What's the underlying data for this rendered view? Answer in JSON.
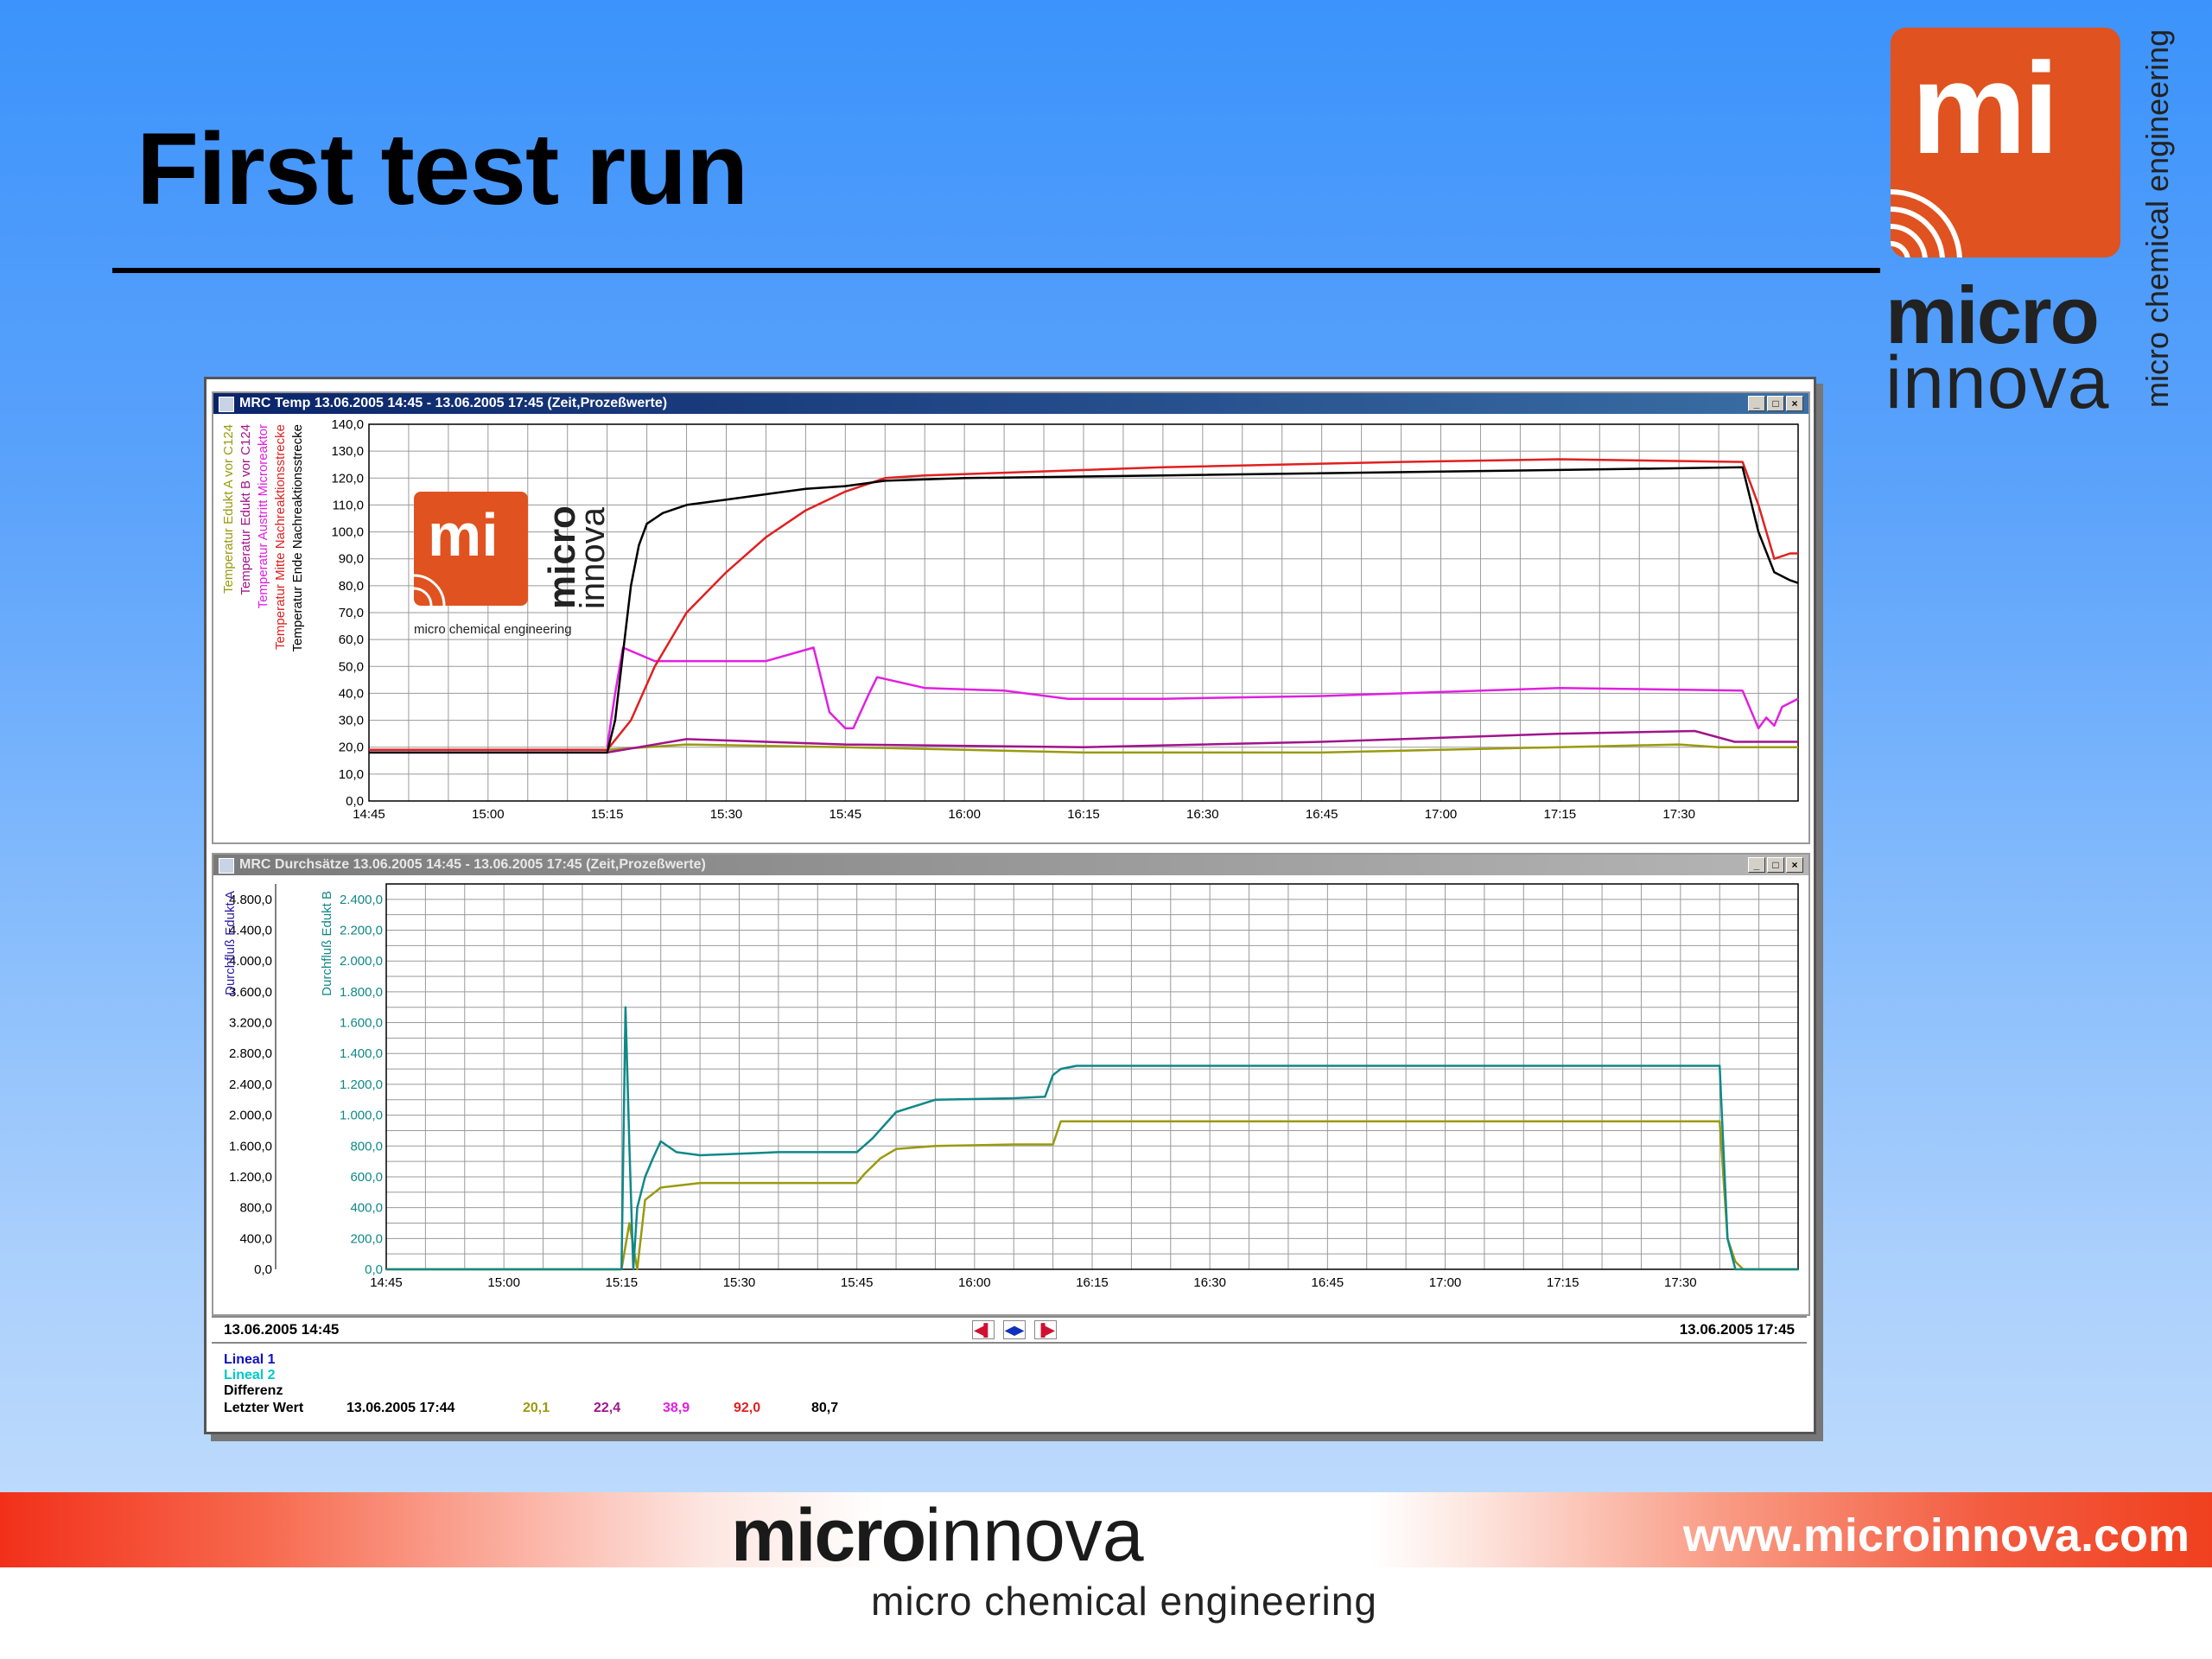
{
  "slide": {
    "title": "First test run"
  },
  "logo": {
    "mark": "mi",
    "line1": "micro",
    "line2": "innova",
    "tagline": "micro chemical engineering"
  },
  "footer": {
    "logo_bold": "micro",
    "logo_light": "innova",
    "url": "www.microinnova.com",
    "tagline": "micro chemical engineering"
  },
  "window": {
    "status_start": "13.06.2005 14:45",
    "status_end": "13.06.2005 17:45",
    "info_labels": [
      "Lineal 1",
      "Lineal 2",
      "Differenz"
    ],
    "last_value_label": "Letzter Wert",
    "last_value_time": "13.06.2005 17:44",
    "last_values": [
      "20,1",
      "22,4",
      "38,9",
      "92,0",
      "80,7"
    ],
    "last_value_colors": [
      "#9a9a10",
      "#a0148c",
      "#e020e0",
      "#e02020",
      "#000000"
    ],
    "info_colors": [
      "#1010c0",
      "#00c8c8",
      "#000000"
    ]
  },
  "colors": {
    "accent": "#e0521f",
    "titlebar": "#0a246a"
  },
  "chart_data": [
    {
      "type": "line",
      "title": "MRC Temp  13.06.2005 14:45 - 13.06.2005 17:45  (Zeit,Prozeßwerte)",
      "xlabel": "",
      "x_ticks": [
        "14:45",
        "15:00",
        "15:15",
        "15:30",
        "15:45",
        "16:00",
        "16:15",
        "16:30",
        "16:45",
        "17:00",
        "17:15",
        "17:30"
      ],
      "xlim": [
        0,
        180
      ],
      "ylim": [
        0,
        140
      ],
      "y_ticks": [
        "0,0",
        "10,0",
        "20,0",
        "30,0",
        "40,0",
        "50,0",
        "60,0",
        "70,0",
        "80,0",
        "90,0",
        "100,0",
        "110,0",
        "120,0",
        "130,0",
        "140,0"
      ],
      "grid": true,
      "inset_logo": {
        "mark": "mi",
        "line1": "micro",
        "line2": "innova",
        "tagline": "micro chemical engineering"
      },
      "series": [
        {
          "name": "Temperatur Edukt A vor C124",
          "color": "#9a9a10",
          "x": [
            0,
            30,
            40,
            60,
            90,
            120,
            150,
            165,
            170,
            180
          ],
          "y": [
            19,
            19,
            21,
            20,
            18,
            18,
            20,
            21,
            20,
            20
          ]
        },
        {
          "name": "Temperatur Edukt B vor C124",
          "color": "#a0148c",
          "x": [
            0,
            30,
            40,
            50,
            60,
            90,
            120,
            150,
            167,
            172,
            180
          ],
          "y": [
            18,
            18,
            23,
            22,
            21,
            20,
            22,
            25,
            26,
            22,
            22
          ]
        },
        {
          "name": "Temperatur Austritt Microreaktor",
          "color": "#e020e0",
          "x": [
            30,
            31,
            32,
            36,
            50,
            56,
            58,
            60,
            61,
            63,
            64,
            70,
            80,
            88,
            100,
            120,
            150,
            173,
            175,
            176,
            177,
            178,
            180
          ],
          "y": [
            20,
            40,
            57,
            52,
            52,
            57,
            33,
            27,
            27,
            40,
            46,
            42,
            41,
            38,
            38,
            39,
            42,
            41,
            27,
            31,
            28,
            35,
            38
          ]
        },
        {
          "name": "Temperatur Mitte Nachreaktionsstrecke",
          "color": "#e02020",
          "x": [
            0,
            30,
            33,
            36,
            40,
            45,
            50,
            55,
            60,
            65,
            70,
            80,
            100,
            130,
            150,
            173,
            175,
            177,
            179,
            180
          ],
          "y": [
            19,
            19,
            30,
            50,
            70,
            85,
            98,
            108,
            115,
            120,
            121,
            122,
            124,
            126,
            127,
            126,
            110,
            90,
            92,
            92
          ]
        },
        {
          "name": "Temperatur Ende Nachreaktionsstrecke",
          "color": "#000000",
          "x": [
            0,
            30,
            31,
            32,
            33,
            34,
            35,
            37,
            40,
            45,
            50,
            55,
            60,
            65,
            75,
            100,
            150,
            173,
            175,
            177,
            179,
            180
          ],
          "y": [
            18,
            18,
            30,
            55,
            80,
            95,
            103,
            107,
            110,
            112,
            114,
            116,
            117,
            119,
            120,
            121,
            123,
            124,
            100,
            85,
            82,
            81
          ]
        }
      ]
    },
    {
      "type": "line",
      "title": "MRC Durchsätze  13.06.2005 14:45 - 13.06.2005 17:45  (Zeit,Prozeßwerte)",
      "x_ticks": [
        "14:45",
        "15:00",
        "15:15",
        "15:30",
        "15:45",
        "16:00",
        "16:15",
        "16:30",
        "16:45",
        "17:00",
        "17:15",
        "17:30"
      ],
      "xlim": [
        0,
        180
      ],
      "ylim_left": [
        0,
        5000
      ],
      "ylim_right": [
        0,
        2500
      ],
      "y_ticks_left": [
        "0,0",
        "400,0",
        "800,0",
        "1.200,0",
        "1.600,0",
        "2.000,0",
        "2.400,0",
        "2.800,0",
        "3.200,0",
        "3.600,0",
        "4.000,0",
        "4.400,0",
        "4.800,0"
      ],
      "y_ticks_right": [
        "0,0",
        "200,0",
        "400,0",
        "600,0",
        "800,0",
        "1.000,0",
        "1.200,0",
        "1.400,0",
        "1.600,0",
        "1.800,0",
        "2.000,0",
        "2.200,0",
        "2.400,0"
      ],
      "ylabel_left": "Durchfluß Edukt A",
      "ylabel_right": "Durchfluß Edukt B",
      "grid": true,
      "series": [
        {
          "name": "Durchfluß Edukt A",
          "color": "#9a9a10",
          "axis": "right",
          "x": [
            0,
            30,
            31,
            32,
            33,
            35,
            40,
            50,
            60,
            61,
            63,
            65,
            70,
            80,
            85,
            86,
            90,
            120,
            150,
            170,
            171,
            172,
            173,
            180
          ],
          "y": [
            0,
            0,
            300,
            0,
            450,
            530,
            560,
            560,
            560,
            620,
            720,
            780,
            800,
            810,
            810,
            960,
            960,
            960,
            960,
            960,
            200,
            50,
            0,
            0
          ]
        },
        {
          "name": "Durchfluß Edukt B",
          "color": "#108888",
          "axis": "right",
          "x": [
            0,
            30,
            30.5,
            31,
            31.5,
            32,
            33,
            34,
            35,
            37,
            40,
            45,
            50,
            55,
            60,
            62,
            65,
            70,
            80,
            84,
            85,
            86,
            88,
            90,
            100,
            120,
            150,
            170,
            171,
            172,
            180
          ],
          "y": [
            0,
            0,
            1700,
            800,
            0,
            400,
            600,
            720,
            830,
            760,
            740,
            750,
            760,
            760,
            760,
            850,
            1020,
            1100,
            1110,
            1120,
            1260,
            1300,
            1320,
            1320,
            1320,
            1320,
            1320,
            1320,
            200,
            0,
            0
          ]
        }
      ]
    }
  ]
}
